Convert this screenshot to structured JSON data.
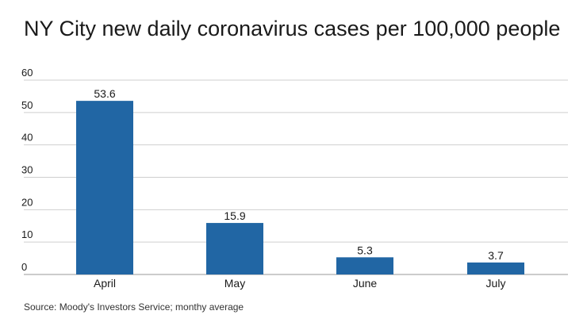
{
  "title": "NY City new daily coronavirus cases per 100,000 people",
  "source": "Source: Moody's Investors Service; monthy average",
  "colors": {
    "bar": "#2166a4",
    "grid": "#cfcfcf",
    "axis": "#9a9a9a",
    "text": "#1a1a1a"
  },
  "chart_data": {
    "type": "bar",
    "title": "NY City new daily coronavirus cases per 100,000 people",
    "xlabel": "",
    "ylabel": "",
    "categories": [
      "April",
      "May",
      "June",
      "July"
    ],
    "values": [
      53.6,
      15.9,
      5.3,
      3.7
    ],
    "data_labels": [
      "53.6",
      "15.9",
      "5.3",
      "3.7"
    ],
    "ylim": [
      0,
      60
    ],
    "yticks": [
      0,
      10,
      20,
      30,
      40,
      50,
      60
    ],
    "grid": true,
    "legend": "none"
  }
}
